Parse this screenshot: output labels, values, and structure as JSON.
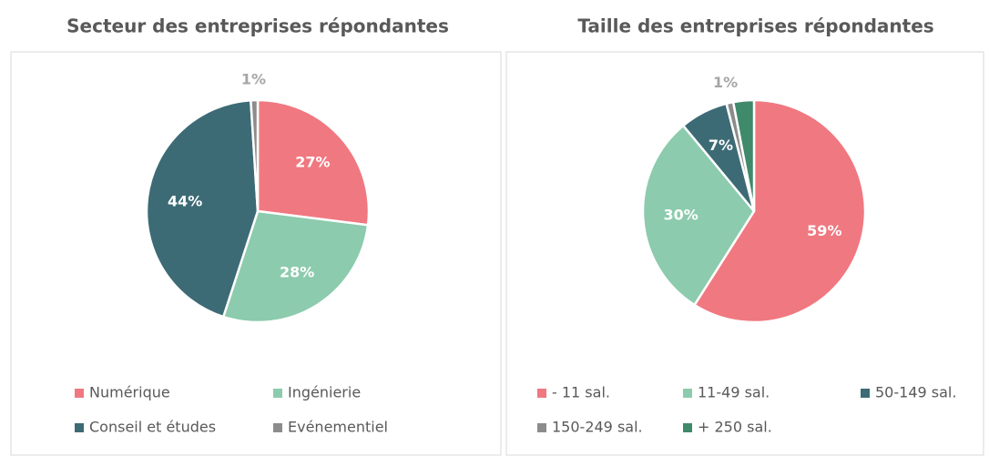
{
  "chart_data": [
    {
      "type": "pie",
      "title": "Secteur des entreprises répondantes",
      "categories": [
        "Numérique",
        "Ingénierie",
        "Conseil et études",
        "Evénementiel"
      ],
      "values": [
        27,
        28,
        44,
        1
      ],
      "value_labels": [
        "27%",
        "28%",
        "44%",
        "1%"
      ],
      "colors": [
        "#f07880",
        "#8ccbad",
        "#3d6b75",
        "#8c8c8c"
      ],
      "legend": "bottom"
    },
    {
      "type": "pie",
      "title": "Taille des entreprises répondantes",
      "categories": [
        "- 11 sal.",
        "11-49 sal.",
        "50-149 sal.",
        "150-249 sal.",
        "+ 250 sal."
      ],
      "values": [
        59,
        30,
        7,
        1,
        3
      ],
      "value_labels": [
        "59%",
        "30%",
        "7%",
        "1%",
        null
      ],
      "colors": [
        "#f07880",
        "#8ccbad",
        "#3d6b75",
        "#8c8c8c",
        "#3e8a6a"
      ],
      "legend": "bottom"
    }
  ]
}
